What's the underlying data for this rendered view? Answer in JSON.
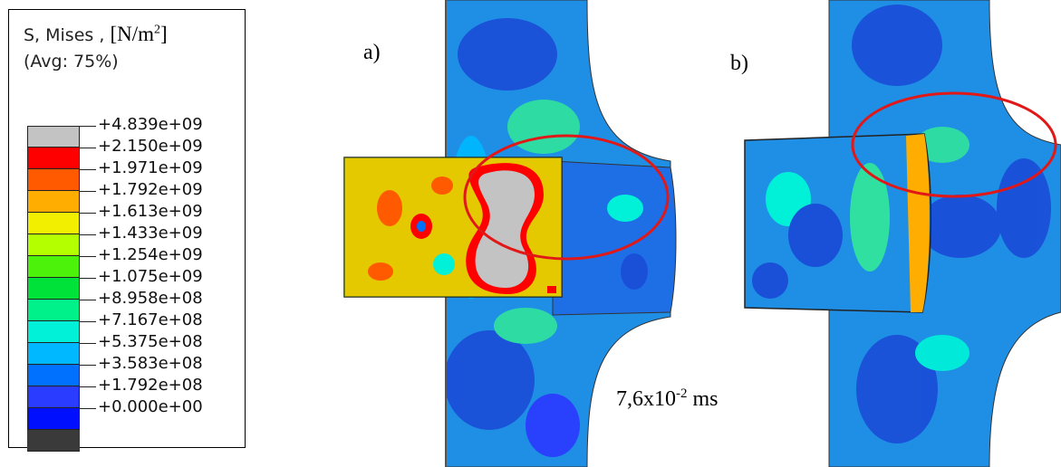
{
  "legend": {
    "title_line1": "S, Mises ,",
    "unit_base": "[N/m",
    "unit_exp": "2",
    "unit_close": "]",
    "title_line2": "(Avg: 75%)",
    "levels": [
      {
        "label": "+4.839e+09",
        "color": "#c3c3c3"
      },
      {
        "label": "+2.150e+09",
        "color": "#ff0000"
      },
      {
        "label": "+1.971e+09",
        "color": "#ff5a00"
      },
      {
        "label": "+1.792e+09",
        "color": "#ffad00"
      },
      {
        "label": "+1.613e+09",
        "color": "#f3ef00"
      },
      {
        "label": "+1.433e+09",
        "color": "#b4ff00"
      },
      {
        "label": "+1.254e+09",
        "color": "#4cf20a"
      },
      {
        "label": "+1.075e+09",
        "color": "#00e13a"
      },
      {
        "label": "+8.958e+08",
        "color": "#00f08a"
      },
      {
        "label": "+7.167e+08",
        "color": "#00f0d8"
      },
      {
        "label": "+5.375e+08",
        "color": "#00b8ff"
      },
      {
        "label": "+3.583e+08",
        "color": "#0070ff"
      },
      {
        "label": "+1.792e+08",
        "color": "#2a3cff"
      },
      {
        "label": "+0.000e+00",
        "color": "#0010ff"
      }
    ],
    "bottom_swatch_color": "#3a3a3a"
  },
  "panels": {
    "a_label": "a)",
    "b_label": "b)",
    "time_value": "7,6x10",
    "time_exp": "-2",
    "time_unit": " ms"
  },
  "colors": {
    "plate_blue": "#1f8fe6",
    "deep_blue": "#1a4fd8",
    "light_green": "#2fe0a0",
    "highlight_ellipse": "#e01818"
  }
}
